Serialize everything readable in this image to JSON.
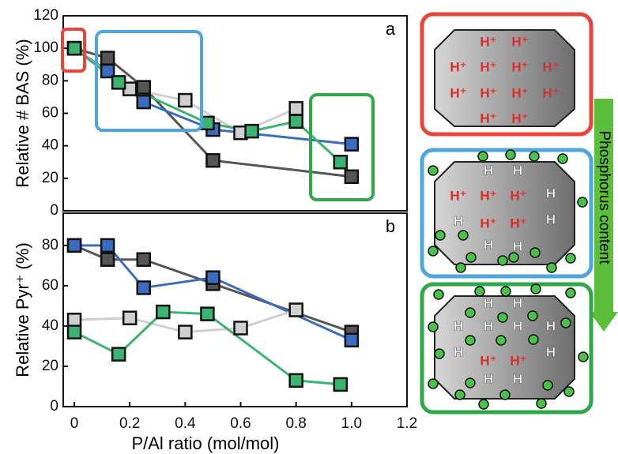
{
  "chart_data": [
    {
      "type": "line",
      "panel_label": "a",
      "y_label": "Relative # BAS (%)",
      "xlim": [
        -0.04,
        1.2
      ],
      "ylim": [
        0,
        120
      ],
      "yticks": [
        0,
        20,
        40,
        60,
        80,
        100,
        120
      ],
      "series": [
        {
          "color": "#555555",
          "x": [
            0,
            0.12,
            0.25,
            0.5,
            1.0
          ],
          "values": [
            100,
            94,
            76,
            31,
            21
          ]
        },
        {
          "color": "#3a6cc0",
          "x": [
            0,
            0.12,
            0.25,
            0.5,
            1.0
          ],
          "values": [
            100,
            86,
            67,
            50,
            41
          ]
        },
        {
          "color": "#cfcfcf",
          "x": [
            0,
            0.2,
            0.4,
            0.6,
            0.8
          ],
          "values": [
            100,
            75,
            68,
            48,
            63
          ]
        },
        {
          "color": "#3cb371",
          "x": [
            0,
            0.16,
            0.48,
            0.64,
            0.8,
            0.96
          ],
          "values": [
            100,
            79,
            54,
            49,
            55,
            30
          ]
        }
      ]
    },
    {
      "type": "line",
      "panel_label": "b",
      "y_label": "Relative Pyr⁺ (%)",
      "x_label": "P/Al ratio (mol/mol)",
      "xlim": [
        -0.04,
        1.2
      ],
      "ylim": [
        0,
        96
      ],
      "yticks": [
        0,
        20,
        40,
        60,
        80
      ],
      "xticks": [
        0,
        0.2,
        0.4,
        0.6,
        0.8,
        {
          "value": 1,
          "label": "1.0"
        },
        1.2
      ],
      "series": [
        {
          "color": "#555555",
          "x": [
            0,
            0.12,
            0.25,
            0.5,
            1.0
          ],
          "values": [
            80,
            73,
            73,
            61,
            37
          ]
        },
        {
          "color": "#3a6cc0",
          "x": [
            0,
            0.12,
            0.25,
            0.5,
            1.0
          ],
          "values": [
            80,
            80,
            59,
            64,
            33
          ]
        },
        {
          "color": "#cfcfcf",
          "x": [
            0,
            0.2,
            0.4,
            0.6,
            0.8
          ],
          "values": [
            43,
            44,
            37,
            39,
            48
          ]
        },
        {
          "color": "#3cb371",
          "x": [
            0,
            0.16,
            0.32,
            0.48,
            0.8,
            0.96
          ],
          "values": [
            37,
            26,
            47,
            46,
            13,
            11
          ]
        }
      ]
    }
  ],
  "diagram": {
    "label": "Phosphorus content",
    "panels": [
      [
        "H⁺",
        "H⁺",
        "H⁺",
        "H⁺",
        "H⁺",
        "H⁺",
        "H⁺",
        "H⁺",
        "H⁺",
        "H⁺",
        "H⁺",
        "H⁺"
      ],
      [
        "H",
        "H",
        "H⁺",
        "H⁺",
        "H⁺",
        "H",
        "H",
        "H⁺",
        "H⁺",
        "H",
        "H",
        "H"
      ],
      [
        "H",
        "H",
        "H",
        "H",
        "H",
        "H",
        "H",
        "H⁺",
        "H⁺",
        "H",
        "H",
        "H"
      ]
    ]
  }
}
